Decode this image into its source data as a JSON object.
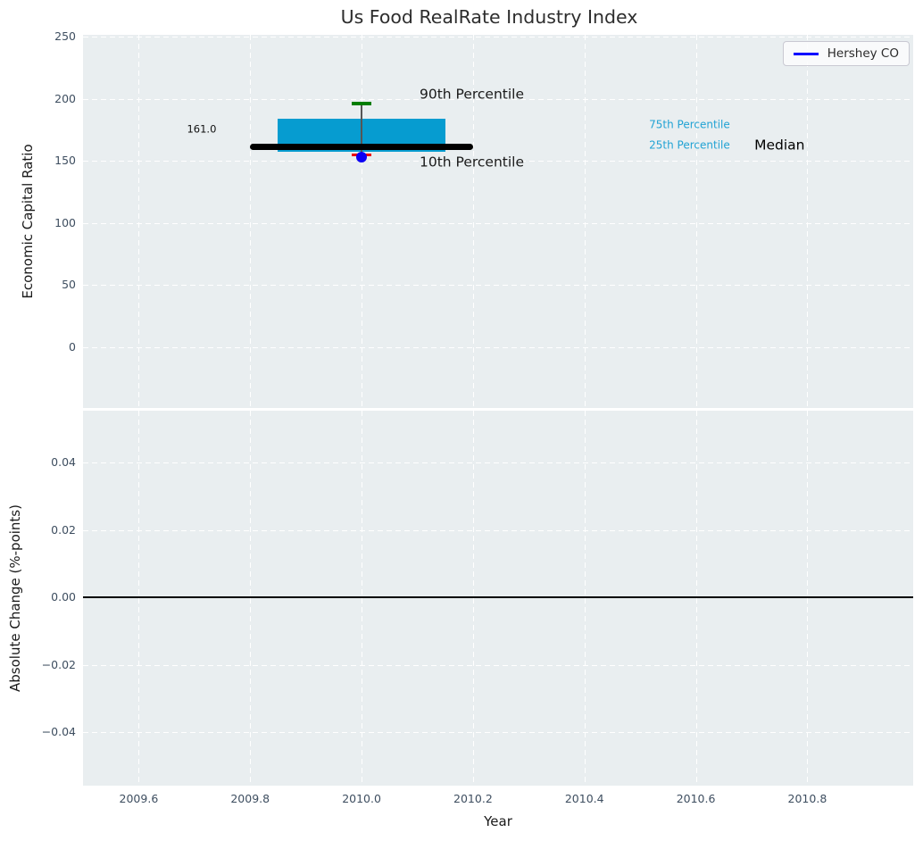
{
  "figure": {
    "title": "Us Food RealRate Industry Index",
    "legend": {
      "label": "Hershey CO",
      "line_color": "#0000ff"
    }
  },
  "colors": {
    "axes_background": "#e9eef0",
    "grid": "#ffffff",
    "tick_label": "#3e4e60",
    "text": "#1a1a1a",
    "percentile_cyan": "#22a3d4",
    "company_blue": "#0b00f5"
  },
  "chart_data": [
    {
      "type": "boxplot",
      "title": "Us Food RealRate Industry Index",
      "xlabel": "Year",
      "ylabel": "Economic Capital Ratio",
      "xlim": [
        2009.5,
        2010.99
      ],
      "ylim": [
        -49,
        251.5
      ],
      "grid": true,
      "legend_position": "upper right",
      "xticks": [
        {
          "v": 2009.6,
          "label": "2009.6"
        },
        {
          "v": 2009.8,
          "label": "2009.8"
        },
        {
          "v": 2010.0,
          "label": "2010.0"
        },
        {
          "v": 2010.2,
          "label": "2010.2"
        },
        {
          "v": 2010.4,
          "label": "2010.4"
        },
        {
          "v": 2010.6,
          "label": "2010.6"
        },
        {
          "v": 2010.8,
          "label": "2010.8"
        }
      ],
      "yticks": [
        {
          "v": 250,
          "label": "250"
        },
        {
          "v": 200,
          "label": "200"
        },
        {
          "v": 150,
          "label": "150"
        },
        {
          "v": 100,
          "label": "100"
        },
        {
          "v": 50,
          "label": "50"
        },
        {
          "v": 0,
          "label": "0"
        }
      ],
      "box": {
        "x": 2010.0,
        "p90": 196,
        "p75": 184,
        "median": 161,
        "p25": 157,
        "p10": 155,
        "box_half_width": 0.15,
        "median_half_width": 0.2,
        "cap_half_width": 0.017,
        "colors": {
          "box": "#069cd0",
          "median": "#000000",
          "whisker": "#555555",
          "p90_cap": "#007d00",
          "p10_cap": "#ee0000"
        }
      },
      "company_point": {
        "name": "Hershey CO",
        "x": 2010.0,
        "y": 153,
        "color": "#0b00f5"
      },
      "annotations": [
        {
          "text": "161.0",
          "x": 2009.713,
          "y": 175,
          "color": "#111111",
          "size": 11.5,
          "ha": "center"
        },
        {
          "text": "90th Percentile",
          "x": 2010.104,
          "y": 203,
          "color": "#1a1a1a",
          "size": 15.5,
          "ha": "left"
        },
        {
          "text": "10th Percentile",
          "x": 2010.104,
          "y": 149,
          "color": "#1a1a1a",
          "size": 15.5,
          "ha": "left"
        },
        {
          "text": "75th Percentile",
          "x": 2010.516,
          "y": 179,
          "color": "#22a3d4",
          "size": 12,
          "ha": "left"
        },
        {
          "text": "25th Percentile",
          "x": 2010.516,
          "y": 162,
          "color": "#22a3d4",
          "size": 12,
          "ha": "left"
        },
        {
          "text": "Median",
          "x": 2010.705,
          "y": 162,
          "color": "#000000",
          "size": 15.5,
          "ha": "left"
        }
      ]
    },
    {
      "type": "line",
      "xlabel": "Year",
      "ylabel": "Absolute Change (%-points)",
      "xlim": [
        2009.5,
        2010.99
      ],
      "ylim": [
        -0.0559,
        0.0554
      ],
      "grid": true,
      "xticks": [
        {
          "v": 2009.6,
          "label": "2009.6"
        },
        {
          "v": 2009.8,
          "label": "2009.8"
        },
        {
          "v": 2010.0,
          "label": "2010.0"
        },
        {
          "v": 2010.2,
          "label": "2010.2"
        },
        {
          "v": 2010.4,
          "label": "2010.4"
        },
        {
          "v": 2010.6,
          "label": "2010.6"
        },
        {
          "v": 2010.8,
          "label": "2010.8"
        }
      ],
      "yticks": [
        {
          "v": 0.04,
          "label": "0.04"
        },
        {
          "v": 0.02,
          "label": "0.02"
        },
        {
          "v": 0,
          "label": "0.00"
        },
        {
          "v": -0.02,
          "label": "−0.02"
        },
        {
          "v": -0.04,
          "label": "−0.04"
        }
      ],
      "zero_line": {
        "y": 0.0,
        "color": "#000000"
      }
    }
  ]
}
